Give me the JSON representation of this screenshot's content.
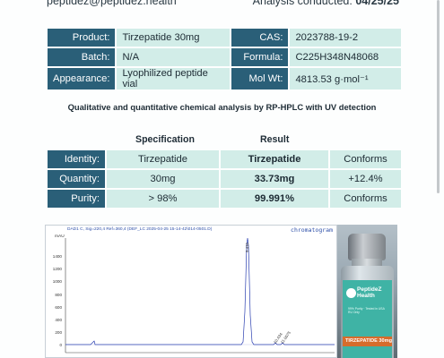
{
  "header": {
    "email": "peptidez@peptidez.health",
    "analysis_prefix": "Analysis conducted:",
    "analysis_date": "04/25/25"
  },
  "info": {
    "rows": [
      {
        "k1": "Product:",
        "v1": "Tirzepatide 30mg",
        "k2": "CAS:",
        "v2": "2023788-19-2"
      },
      {
        "k1": "Batch:",
        "v1": "N/A",
        "k2": "Formula:",
        "v2": "C225H348N48068"
      },
      {
        "k1": "Appearance:",
        "v1": "Lyophilized peptide vial",
        "k2": "Mol Wt:",
        "v2": "4813.53 g·mol⁻¹"
      }
    ]
  },
  "subtitle": "Qualitative and quantitative chemical analysis by RP-HPLC with UV detection",
  "results": {
    "col_spec": "Specification",
    "col_result": "Result",
    "rows": [
      {
        "label": "Identity:",
        "spec": "Tirzepatide",
        "result": "Tirzepatide",
        "extra": "Conforms"
      },
      {
        "label": "Quantity:",
        "spec": "30mg",
        "result": "33.73mg",
        "extra": "+12.4%"
      },
      {
        "label": "Purity:",
        "spec": "> 98%",
        "result": "99.991%",
        "extra": "Conforms"
      }
    ]
  },
  "chromatogram": {
    "header": "DAD1 C, Sig=220,4 Ref=360,4 (DEF_LC 2025-04-25 15-14-42\\014-0501.D)",
    "tag": "chromatogram",
    "unit": "mAU",
    "y_ticks": [
      "1400",
      "1200",
      "1000",
      "800",
      "600",
      "400",
      "200",
      "0"
    ],
    "peak_labels": [
      "9.410",
      "10.434",
      "11.0075"
    ],
    "colors": {
      "trace": "#2a3fb0",
      "axis": "#444444"
    }
  },
  "vial": {
    "brand_line1": "PeptideZ",
    "brand_line2": "Health",
    "small_line1": "99% Purity · Tested in USA",
    "small_line2": "RU Only",
    "name": "TIRZEPATIDE 30mg"
  }
}
